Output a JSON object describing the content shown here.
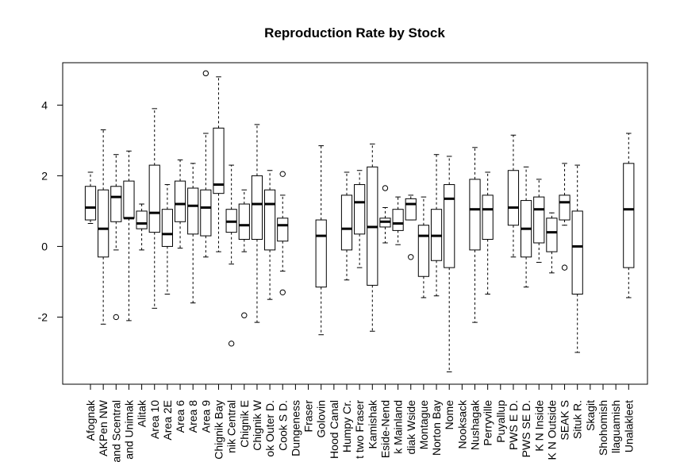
{
  "chart_data": {
    "type": "boxplot",
    "title": "Reproduction Rate by Stock",
    "xlabel": "",
    "ylabel": "",
    "ylim": [
      -3.9,
      5.2
    ],
    "y_ticks": [
      -2,
      0,
      2,
      4
    ],
    "grid": false,
    "categories": [
      "Afognak",
      "AKPen NW",
      "and Scentral",
      "and Unimak",
      "Alitak",
      "Area 10",
      "Area 2E",
      "Area 6",
      "Area 8",
      "Area 9",
      "Chignik Bay",
      "nik Central",
      "Chignik E",
      "Chignik W",
      "ok Outer D.",
      "Cook S D.",
      "Dungeness",
      "Fraser",
      "Golovin",
      "Hood Canal",
      "Humpy Cr.",
      "t two Fraser",
      "Kamishak",
      "Eside-Nend",
      "k Mainland",
      "diak Wside",
      "Montague",
      "Norton Bay",
      "Nome",
      "Nooksack",
      "Nushagak",
      "Perryville",
      "Puyallup",
      "PWS E D.",
      "PWS SE D.",
      "K N Inside",
      "K N Outside",
      "SEAK S",
      "Situk R.",
      "Skagit",
      "Shohomish",
      "llaguamish",
      "Unalakleet"
    ],
    "boxes": [
      {
        "whislo": 0.65,
        "q1": 0.75,
        "med": 1.1,
        "q3": 1.7,
        "whishi": 2.1,
        "outliers": []
      },
      {
        "whislo": -2.2,
        "q1": -0.3,
        "med": 0.5,
        "q3": 1.6,
        "whishi": 3.3,
        "outliers": []
      },
      {
        "whislo": -0.1,
        "q1": 0.7,
        "med": 1.4,
        "q3": 1.7,
        "whishi": 2.6,
        "outliers": [
          -2.0
        ]
      },
      {
        "whislo": -2.1,
        "q1": 0.8,
        "med": 0.8,
        "q3": 1.85,
        "whishi": 2.7,
        "outliers": []
      },
      {
        "whislo": -0.1,
        "q1": 0.5,
        "med": 0.65,
        "q3": 1.0,
        "whishi": 1.2,
        "outliers": []
      },
      {
        "whislo": -1.75,
        "q1": 0.4,
        "med": 0.95,
        "q3": 2.3,
        "whishi": 3.9,
        "outliers": []
      },
      {
        "whislo": -1.35,
        "q1": 0.0,
        "med": 0.35,
        "q3": 1.05,
        "whishi": 1.75,
        "outliers": []
      },
      {
        "whislo": -0.05,
        "q1": 0.7,
        "med": 1.2,
        "q3": 1.85,
        "whishi": 2.45,
        "outliers": []
      },
      {
        "whislo": -1.6,
        "q1": 0.35,
        "med": 1.15,
        "q3": 1.65,
        "whishi": 2.35,
        "outliers": []
      },
      {
        "whislo": -0.3,
        "q1": 0.3,
        "med": 1.1,
        "q3": 1.6,
        "whishi": 3.2,
        "outliers": [
          4.9
        ]
      },
      {
        "whislo": -0.15,
        "q1": 1.5,
        "med": 1.75,
        "q3": 3.35,
        "whishi": 4.8,
        "outliers": []
      },
      {
        "whislo": -0.5,
        "q1": 0.4,
        "med": 0.7,
        "q3": 1.05,
        "whishi": 2.3,
        "outliers": [
          -2.75
        ]
      },
      {
        "whislo": -0.15,
        "q1": 0.2,
        "med": 0.6,
        "q3": 1.2,
        "whishi": 1.6,
        "outliers": [
          -1.95
        ]
      },
      {
        "whislo": -2.15,
        "q1": 0.2,
        "med": 1.2,
        "q3": 2.0,
        "whishi": 3.45,
        "outliers": []
      },
      {
        "whislo": -1.5,
        "q1": -0.1,
        "med": 1.2,
        "q3": 1.6,
        "whishi": 2.15,
        "outliers": []
      },
      {
        "whislo": -0.7,
        "q1": 0.15,
        "med": 0.6,
        "q3": 0.8,
        "whishi": 1.45,
        "outliers": [
          2.05,
          -1.3
        ]
      },
      null,
      null,
      {
        "whislo": -2.5,
        "q1": -1.15,
        "med": 0.3,
        "q3": 0.75,
        "whishi": 2.85,
        "outliers": []
      },
      null,
      {
        "whislo": -0.95,
        "q1": -0.1,
        "med": 0.5,
        "q3": 1.45,
        "whishi": 2.1,
        "outliers": []
      },
      {
        "whislo": -0.6,
        "q1": 0.35,
        "med": 1.25,
        "q3": 1.75,
        "whishi": 2.15,
        "outliers": []
      },
      {
        "whislo": -2.4,
        "q1": -1.1,
        "med": 0.55,
        "q3": 2.25,
        "whishi": 2.9,
        "outliers": []
      },
      {
        "whislo": 0.1,
        "q1": 0.55,
        "med": 0.7,
        "q3": 0.8,
        "whishi": 1.1,
        "outliers": [
          1.65
        ]
      },
      {
        "whislo": 0.05,
        "q1": 0.45,
        "med": 0.65,
        "q3": 1.05,
        "whishi": 1.4,
        "outliers": []
      },
      {
        "whislo": 0.75,
        "q1": 0.75,
        "med": 1.2,
        "q3": 1.35,
        "whishi": 1.45,
        "outliers": [
          -0.3
        ]
      },
      {
        "whislo": -1.45,
        "q1": -0.85,
        "med": 0.3,
        "q3": 0.6,
        "whishi": 1.4,
        "outliers": []
      },
      {
        "whislo": -1.4,
        "q1": -0.4,
        "med": 0.3,
        "q3": 1.05,
        "whishi": 2.6,
        "outliers": []
      },
      {
        "whislo": -3.55,
        "q1": -0.6,
        "med": 1.35,
        "q3": 1.75,
        "whishi": 2.55,
        "outliers": []
      },
      null,
      {
        "whislo": -2.15,
        "q1": -0.1,
        "med": 1.05,
        "q3": 1.9,
        "whishi": 2.8,
        "outliers": []
      },
      {
        "whislo": -1.35,
        "q1": 0.2,
        "med": 1.05,
        "q3": 1.45,
        "whishi": 2.1,
        "outliers": []
      },
      null,
      {
        "whislo": -0.3,
        "q1": 0.6,
        "med": 1.1,
        "q3": 2.15,
        "whishi": 3.15,
        "outliers": []
      },
      {
        "whislo": -1.15,
        "q1": -0.3,
        "med": 0.5,
        "q3": 1.3,
        "whishi": 2.25,
        "outliers": []
      },
      {
        "whislo": -0.45,
        "q1": 0.1,
        "med": 1.05,
        "q3": 1.4,
        "whishi": 1.9,
        "outliers": []
      },
      {
        "whislo": -0.75,
        "q1": -0.15,
        "med": 0.4,
        "q3": 0.8,
        "whishi": 0.95,
        "outliers": []
      },
      {
        "whislo": 0.6,
        "q1": 0.75,
        "med": 1.25,
        "q3": 1.45,
        "whishi": 2.35,
        "outliers": [
          -0.6
        ]
      },
      {
        "whislo": -3.0,
        "q1": -1.35,
        "med": 0.0,
        "q3": 1.0,
        "whishi": 2.3,
        "outliers": []
      },
      null,
      null,
      null,
      {
        "whislo": -1.45,
        "q1": -0.6,
        "med": 1.05,
        "q3": 2.35,
        "whishi": 3.2,
        "outliers": []
      }
    ]
  }
}
